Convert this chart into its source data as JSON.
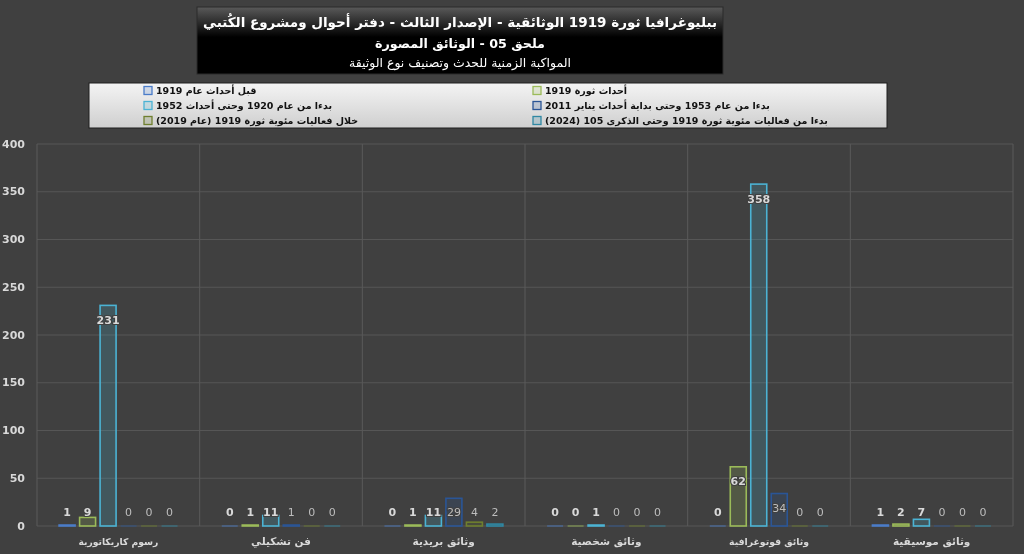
{
  "chart_data": {
    "type": "bar",
    "title": "ببليوغرافيا ثورة 1919 الوثائقية - الإصدار الثالث - دفتر أحوال ومشروع الكُتبي",
    "subtitle": "ملحق 05 - الوثائق المصورة",
    "annotations": [
      "المواكبة الزمنية للحدث وتصنيف نوع الوثيقة"
    ],
    "categories": [
      "رسوم كاريكاتورية",
      "فن تشكيلي",
      "وثائق بريدية",
      "وثائق شخصية",
      "وثائق فوتوغرافية",
      "وثائق موسيقية"
    ],
    "series": [
      {
        "name": "قبل أحداث عام 1919",
        "color": "#4a7cc9",
        "values": [
          1,
          0,
          0,
          0,
          0,
          1
        ]
      },
      {
        "name": "أحداث ثورة 1919",
        "color": "#9bbb59",
        "values": [
          9,
          1,
          1,
          0,
          62,
          2
        ]
      },
      {
        "name": "بدءا من عام 1920 وحتى أحداث 1952",
        "color": "#4bb3d4",
        "values": [
          231,
          11,
          11,
          1,
          358,
          7
        ]
      },
      {
        "name": "بدءا من عام 1953 وحتى بداية أحداث يناير 2011",
        "color": "#2a5596",
        "values": [
          0,
          1,
          29,
          0,
          34,
          0
        ]
      },
      {
        "name": "خلال فعاليات مئوية ثورة 1919 (عام 2019)",
        "color": "#6f7f2e",
        "values": [
          0,
          0,
          4,
          0,
          0,
          0
        ]
      },
      {
        "name": "بدءا من فعاليات مئوية ثورة 1919 وحتى الذكرى 105 (2024)",
        "color": "#2f88a3",
        "values": [
          0,
          0,
          2,
          0,
          0,
          0
        ]
      }
    ],
    "ylim": [
      0,
      400
    ],
    "yticks": [
      0,
      50,
      100,
      150,
      200,
      250,
      300,
      350,
      400
    ],
    "grid": true,
    "legend": "top",
    "data_labels": true
  }
}
